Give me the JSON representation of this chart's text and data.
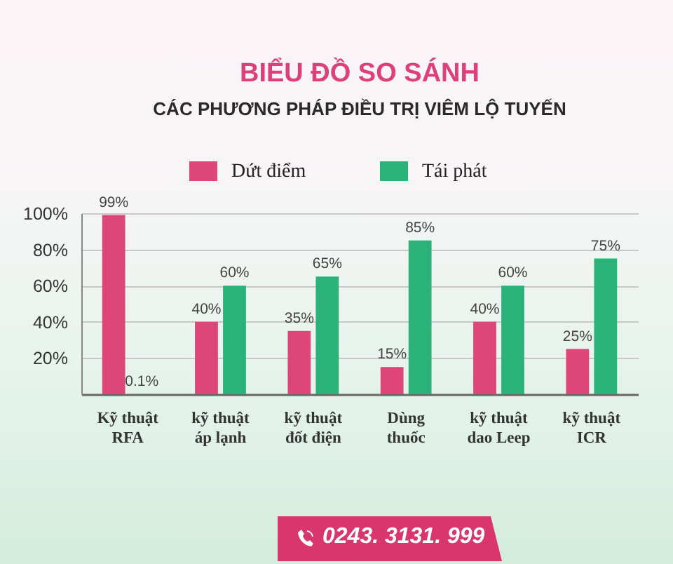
{
  "chart_data": {
    "type": "bar",
    "title": "BIỂU ĐỒ SO SÁNH",
    "subtitle": "CÁC PHƯƠNG PHÁP ĐIỀU TRỊ VIÊM LỘ TUYẾN",
    "categories": [
      "Kỹ thuật\nRFA",
      "kỹ thuật\náp lạnh",
      "kỹ thuật\nđốt điện",
      "Dùng\nthuốc",
      "kỹ thuật\ndao Leep",
      "kỹ thuật\nICR"
    ],
    "series": [
      {
        "name": "Dứt điểm",
        "color": "#de4679",
        "values": [
          99,
          40,
          35,
          15,
          40,
          25
        ],
        "value_labels": [
          "99%",
          "40%",
          "35%",
          "15%",
          "40%",
          "25%"
        ]
      },
      {
        "name": "Tái phát",
        "color": "#2bb27a",
        "values": [
          0.1,
          60,
          65,
          85,
          60,
          75
        ],
        "value_labels": [
          "0.1%",
          "60%",
          "65%",
          "85%",
          "60%",
          "75%"
        ]
      }
    ],
    "ylim": [
      0,
      100
    ],
    "yticks": [
      {
        "value": 20,
        "label": "20%"
      },
      {
        "value": 40,
        "label": "40%"
      },
      {
        "value": 60,
        "label": "60%"
      },
      {
        "value": 80,
        "label": "80%"
      },
      {
        "value": 100,
        "label": "100%"
      }
    ],
    "grid": "y",
    "legend": "top",
    "annotations": [
      "0243. 3131. 999"
    ]
  }
}
